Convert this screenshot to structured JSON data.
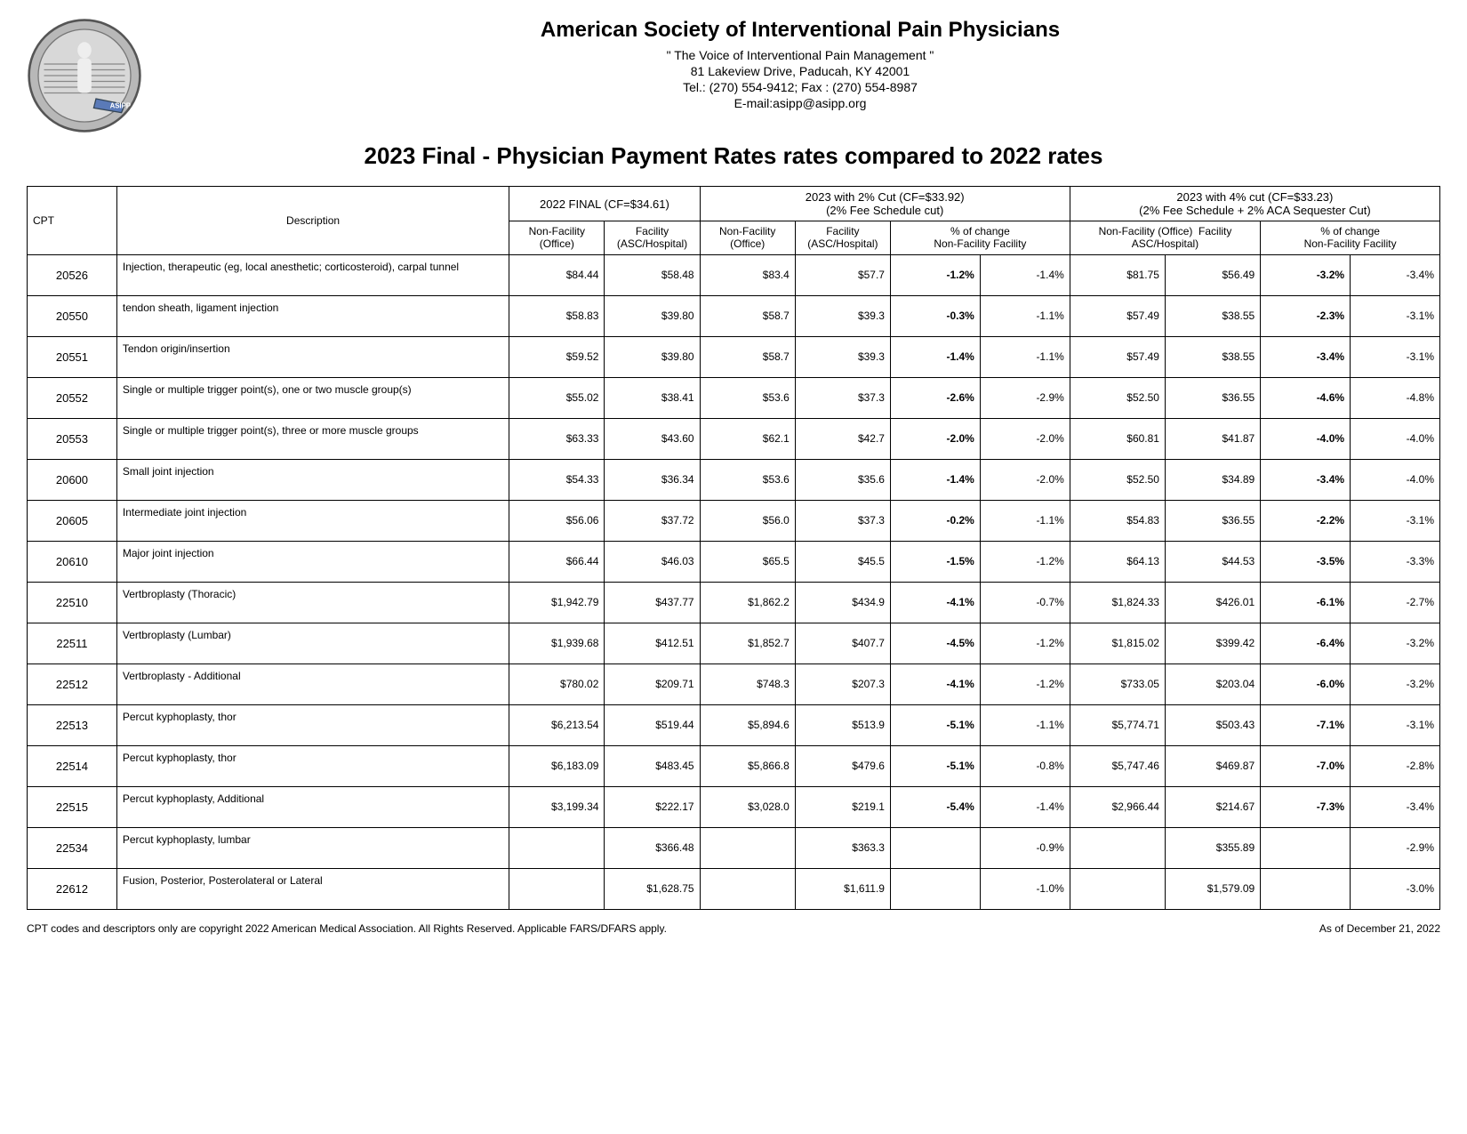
{
  "header": {
    "org_title": "American Society of Interventional Pain Physicians",
    "tagline": "\" The Voice of Interventional Pain Management \"",
    "address": "81 Lakeview Drive, Paducah, KY 42001",
    "telfax": "Tel.: (270) 554-9412; Fax : (270) 554-8987",
    "email": "E-mail:asipp@asipp.org"
  },
  "page_title": "2023 Final  - Physician Payment Rates rates compared to 2022 rates",
  "columns": {
    "cpt": "CPT",
    "desc": "Description",
    "group_2022": "2022 FINAL (CF=$34.61)",
    "group_2pct": "2023 with 2% Cut (CF=$33.92)",
    "group_2pct_sub": "(2% Fee Schedule cut)",
    "group_4pct": "2023 with 4% cut (CF=$33.23)",
    "group_4pct_sub": "(2% Fee Schedule + 2% ACA Sequester Cut)",
    "nf": "Non-Facility",
    "nf2": "(Office)",
    "fac": "Facility",
    "fac2": "(ASC/Hospital)",
    "nf_short": "Non-Facility (Office)",
    "fac_short": "Facility ASC/Hospital)",
    "pct": "% of change",
    "pct_nf": "Non-Facility",
    "pct_fac": "Facility"
  },
  "rows": [
    {
      "cpt": "20526",
      "desc": "Injection, therapeutic (eg, local anesthetic; corticosteroid), carpal tunnel",
      "nf22": "$84.44",
      "f22": "$58.48",
      "nf2p": "$83.4",
      "f2p": "$57.7",
      "pnf2": "-1.2%",
      "pf2": "-1.4%",
      "nf4p": "$81.75",
      "f4p": "$56.49",
      "pnf4": "-3.2%",
      "pf4": "-3.4%"
    },
    {
      "cpt": "20550",
      "desc": "tendon sheath, ligament injection",
      "nf22": "$58.83",
      "f22": "$39.80",
      "nf2p": "$58.7",
      "f2p": "$39.3",
      "pnf2": "-0.3%",
      "pf2": "-1.1%",
      "nf4p": "$57.49",
      "f4p": "$38.55",
      "pnf4": "-2.3%",
      "pf4": "-3.1%"
    },
    {
      "cpt": "20551",
      "desc": "Tendon origin/insertion",
      "nf22": "$59.52",
      "f22": "$39.80",
      "nf2p": "$58.7",
      "f2p": "$39.3",
      "pnf2": "-1.4%",
      "pf2": "-1.1%",
      "nf4p": "$57.49",
      "f4p": "$38.55",
      "pnf4": "-3.4%",
      "pf4": "-3.1%"
    },
    {
      "cpt": "20552",
      "desc": "Single or multiple trigger point(s), one or two muscle group(s)",
      "nf22": "$55.02",
      "f22": "$38.41",
      "nf2p": "$53.6",
      "f2p": "$37.3",
      "pnf2": "-2.6%",
      "pf2": "-2.9%",
      "nf4p": "$52.50",
      "f4p": "$36.55",
      "pnf4": "-4.6%",
      "pf4": "-4.8%"
    },
    {
      "cpt": "20553",
      "desc": "Single or multiple trigger point(s), three or more muscle groups",
      "nf22": "$63.33",
      "f22": "$43.60",
      "nf2p": "$62.1",
      "f2p": "$42.7",
      "pnf2": "-2.0%",
      "pf2": "-2.0%",
      "nf4p": "$60.81",
      "f4p": "$41.87",
      "pnf4": "-4.0%",
      "pf4": "-4.0%"
    },
    {
      "cpt": "20600",
      "desc": "Small joint injection",
      "nf22": "$54.33",
      "f22": "$36.34",
      "nf2p": "$53.6",
      "f2p": "$35.6",
      "pnf2": "-1.4%",
      "pf2": "-2.0%",
      "nf4p": "$52.50",
      "f4p": "$34.89",
      "pnf4": "-3.4%",
      "pf4": "-4.0%"
    },
    {
      "cpt": "20605",
      "desc": "Intermediate joint injection",
      "nf22": "$56.06",
      "f22": "$37.72",
      "nf2p": "$56.0",
      "f2p": "$37.3",
      "pnf2": "-0.2%",
      "pf2": "-1.1%",
      "nf4p": "$54.83",
      "f4p": "$36.55",
      "pnf4": "-2.2%",
      "pf4": "-3.1%"
    },
    {
      "cpt": "20610",
      "desc": "Major joint injection",
      "nf22": "$66.44",
      "f22": "$46.03",
      "nf2p": "$65.5",
      "f2p": "$45.5",
      "pnf2": "-1.5%",
      "pf2": "-1.2%",
      "nf4p": "$64.13",
      "f4p": "$44.53",
      "pnf4": "-3.5%",
      "pf4": "-3.3%"
    },
    {
      "cpt": "22510",
      "desc": "Vertbroplasty (Thoracic)",
      "nf22": "$1,942.79",
      "f22": "$437.77",
      "nf2p": "$1,862.2",
      "f2p": "$434.9",
      "pnf2": "-4.1%",
      "pf2": "-0.7%",
      "nf4p": "$1,824.33",
      "f4p": "$426.01",
      "pnf4": "-6.1%",
      "pf4": "-2.7%"
    },
    {
      "cpt": "22511",
      "desc": "Vertbroplasty (Lumbar)",
      "nf22": "$1,939.68",
      "f22": "$412.51",
      "nf2p": "$1,852.7",
      "f2p": "$407.7",
      "pnf2": "-4.5%",
      "pf2": "-1.2%",
      "nf4p": "$1,815.02",
      "f4p": "$399.42",
      "pnf4": "-6.4%",
      "pf4": "-3.2%"
    },
    {
      "cpt": "22512",
      "desc": "Vertbroplasty - Additional",
      "nf22": "$780.02",
      "f22": "$209.71",
      "nf2p": "$748.3",
      "f2p": "$207.3",
      "pnf2": "-4.1%",
      "pf2": "-1.2%",
      "nf4p": "$733.05",
      "f4p": "$203.04",
      "pnf4": "-6.0%",
      "pf4": "-3.2%"
    },
    {
      "cpt": "22513",
      "desc": "Percut kyphoplasty, thor",
      "nf22": "$6,213.54",
      "f22": "$519.44",
      "nf2p": "$5,894.6",
      "f2p": "$513.9",
      "pnf2": "-5.1%",
      "pf2": "-1.1%",
      "nf4p": "$5,774.71",
      "f4p": "$503.43",
      "pnf4": "-7.1%",
      "pf4": "-3.1%"
    },
    {
      "cpt": "22514",
      "desc": "Percut kyphoplasty, thor",
      "nf22": "$6,183.09",
      "f22": "$483.45",
      "nf2p": "$5,866.8",
      "f2p": "$479.6",
      "pnf2": "-5.1%",
      "pf2": "-0.8%",
      "nf4p": "$5,747.46",
      "f4p": "$469.87",
      "pnf4": "-7.0%",
      "pf4": "-2.8%"
    },
    {
      "cpt": "22515",
      "desc": "Percut kyphoplasty, Additional",
      "nf22": "$3,199.34",
      "f22": "$222.17",
      "nf2p": "$3,028.0",
      "f2p": "$219.1",
      "pnf2": "-5.4%",
      "pf2": "-1.4%",
      "nf4p": "$2,966.44",
      "f4p": "$214.67",
      "pnf4": "-7.3%",
      "pf4": "-3.4%"
    },
    {
      "cpt": "22534",
      "desc": "Percut kyphoplasty, lumbar",
      "nf22": "",
      "f22": "$366.48",
      "nf2p": "",
      "f2p": "$363.3",
      "pnf2": "",
      "pf2": "-0.9%",
      "nf4p": "",
      "f4p": "$355.89",
      "pnf4": "",
      "pf4": "-2.9%"
    },
    {
      "cpt": "22612",
      "desc": "Fusion, Posterior, Posterolateral or Lateral",
      "nf22": "",
      "f22": "$1,628.75",
      "nf2p": "",
      "f2p": "$1,611.9",
      "pnf2": "",
      "pf2": "-1.0%",
      "nf4p": "",
      "f4p": "$1,579.09",
      "pnf4": "",
      "pf4": "-3.0%"
    }
  ],
  "footer": {
    "copyright": "CPT codes and descriptors only are copyright 2022 American Medical Association.  All Rights Reserved.  Applicable FARS/DFARS apply.",
    "asof": "As of December 21, 2022"
  }
}
